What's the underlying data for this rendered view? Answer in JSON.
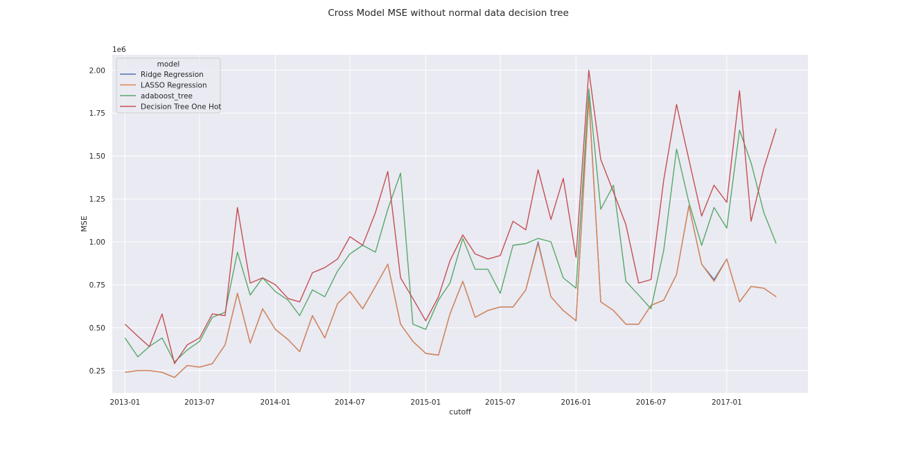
{
  "chart_data": {
    "type": "line",
    "title": "Cross Model MSE without normal data decision tree",
    "xlabel": "cutoff",
    "ylabel": "MSE",
    "y_offset_label": "1e6",
    "ylim": [
      0.12,
      2.09
    ],
    "xlim": [
      "2012-12-01",
      "2017-07-17"
    ],
    "y_ticks": [
      0.25,
      0.5,
      0.75,
      1.0,
      1.25,
      1.5,
      1.75,
      2.0
    ],
    "y_tick_labels": [
      "0.25",
      "0.50",
      "0.75",
      "1.00",
      "1.25",
      "1.50",
      "1.75",
      "2.00"
    ],
    "x_ticks": [
      "2013-01-01",
      "2013-07-01",
      "2014-01-01",
      "2014-07-01",
      "2015-01-01",
      "2015-07-01",
      "2016-01-01",
      "2016-07-01",
      "2017-01-01"
    ],
    "x_tick_labels": [
      "2013-01",
      "2013-07",
      "2014-01",
      "2014-07",
      "2015-01",
      "2015-07",
      "2016-01",
      "2016-07",
      "2017-01"
    ],
    "grid": true,
    "legend": {
      "title": "model",
      "placement": "top-left"
    },
    "x": [
      "2013-01",
      "2013-02",
      "2013-03",
      "2013-04",
      "2013-05",
      "2013-06",
      "2013-07",
      "2013-08",
      "2013-09",
      "2013-10",
      "2013-11",
      "2013-12",
      "2014-01",
      "2014-02",
      "2014-03",
      "2014-04",
      "2014-05",
      "2014-06",
      "2014-07",
      "2014-08",
      "2014-09",
      "2014-10",
      "2014-11",
      "2014-12",
      "2015-01",
      "2015-02",
      "2015-03",
      "2015-04",
      "2015-05",
      "2015-06",
      "2015-07",
      "2015-08",
      "2015-09",
      "2015-10",
      "2015-11",
      "2015-12",
      "2016-01",
      "2016-02",
      "2016-03",
      "2016-04",
      "2016-05",
      "2016-06",
      "2016-07",
      "2016-08",
      "2016-09",
      "2016-10",
      "2016-11",
      "2016-12",
      "2017-01",
      "2017-02",
      "2017-03",
      "2017-04",
      "2017-05"
    ],
    "series": [
      {
        "name": "Ridge Regression",
        "color": "#4c72b0",
        "values": [
          0.24,
          0.25,
          0.25,
          0.24,
          0.21,
          0.28,
          0.27,
          0.29,
          0.4,
          0.7,
          0.41,
          0.61,
          0.49,
          0.43,
          0.36,
          0.57,
          0.44,
          0.64,
          0.71,
          0.61,
          0.74,
          0.87,
          0.52,
          0.42,
          0.35,
          0.34,
          0.58,
          0.77,
          0.56,
          0.6,
          0.62,
          0.62,
          0.72,
          1.0,
          0.68,
          0.6,
          0.54,
          1.85,
          0.65,
          0.6,
          0.52,
          0.52,
          0.63,
          0.66,
          0.81,
          1.21,
          0.87,
          0.78,
          0.9,
          0.65,
          0.74,
          0.73,
          0.68
        ]
      },
      {
        "name": "LASSO Regression",
        "color": "#dd8452",
        "values": [
          0.24,
          0.25,
          0.25,
          0.24,
          0.21,
          0.28,
          0.27,
          0.29,
          0.4,
          0.7,
          0.41,
          0.61,
          0.49,
          0.43,
          0.36,
          0.57,
          0.44,
          0.64,
          0.71,
          0.61,
          0.74,
          0.87,
          0.52,
          0.42,
          0.35,
          0.34,
          0.58,
          0.77,
          0.56,
          0.6,
          0.62,
          0.62,
          0.72,
          0.99,
          0.68,
          0.6,
          0.54,
          1.83,
          0.65,
          0.6,
          0.52,
          0.52,
          0.63,
          0.66,
          0.81,
          1.21,
          0.87,
          0.77,
          0.9,
          0.65,
          0.74,
          0.73,
          0.68
        ]
      },
      {
        "name": "adaboost_tree",
        "color": "#55a868",
        "values": [
          0.44,
          0.33,
          0.39,
          0.44,
          0.3,
          0.37,
          0.42,
          0.56,
          0.59,
          0.94,
          0.69,
          0.79,
          0.71,
          0.66,
          0.57,
          0.72,
          0.68,
          0.83,
          0.93,
          0.98,
          0.94,
          1.19,
          1.4,
          0.52,
          0.49,
          0.66,
          0.76,
          1.02,
          0.84,
          0.84,
          0.7,
          0.98,
          0.99,
          1.02,
          1.0,
          0.79,
          0.73,
          1.89,
          1.19,
          1.33,
          0.77,
          0.69,
          0.61,
          0.95,
          1.54,
          1.23,
          0.98,
          1.2,
          1.08,
          1.65,
          1.46,
          1.17,
          0.99
        ]
      },
      {
        "name": "Decision Tree One Hot",
        "color": "#c44e52",
        "values": [
          0.52,
          0.45,
          0.39,
          0.58,
          0.29,
          0.4,
          0.44,
          0.58,
          0.57,
          1.2,
          0.76,
          0.79,
          0.75,
          0.67,
          0.65,
          0.82,
          0.85,
          0.9,
          1.03,
          0.98,
          1.17,
          1.41,
          0.79,
          0.67,
          0.54,
          0.68,
          0.89,
          1.04,
          0.93,
          0.9,
          0.92,
          1.12,
          1.07,
          1.42,
          1.13,
          1.37,
          0.91,
          2.0,
          1.48,
          1.29,
          1.1,
          0.76,
          0.78,
          1.36,
          1.8,
          1.48,
          1.15,
          1.33,
          1.23,
          1.88,
          1.12,
          1.43,
          1.66
        ]
      }
    ]
  }
}
